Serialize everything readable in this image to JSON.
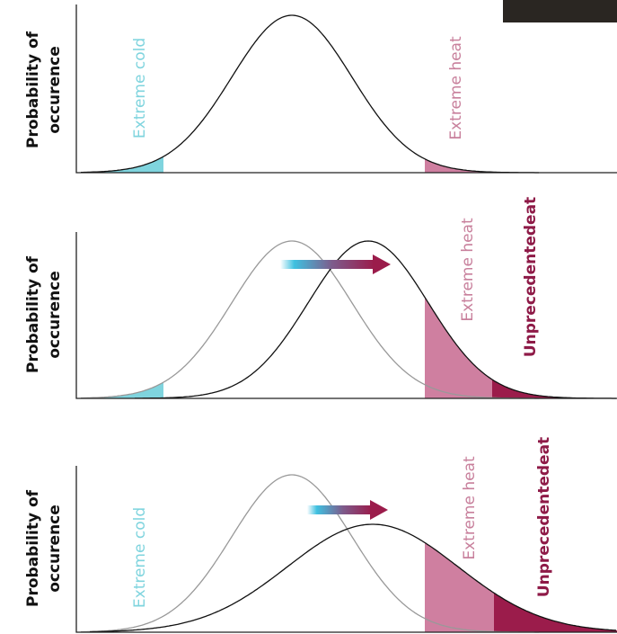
{
  "panels": [
    {
      "y_axis_label": [
        "Probability of",
        "occurence"
      ],
      "labels": [
        "Extreme cold",
        "Extreme heat"
      ]
    },
    {
      "y_axis_label": [
        "Probability of",
        "occurence"
      ],
      "labels": [
        "Extreme heat",
        "Unprecedentedeat"
      ]
    },
    {
      "y_axis_label": [
        "Probability of",
        "occurence"
      ],
      "labels": [
        "Extreme cold",
        "Extreme heat",
        "Unprecedentedeat"
      ]
    }
  ]
}
